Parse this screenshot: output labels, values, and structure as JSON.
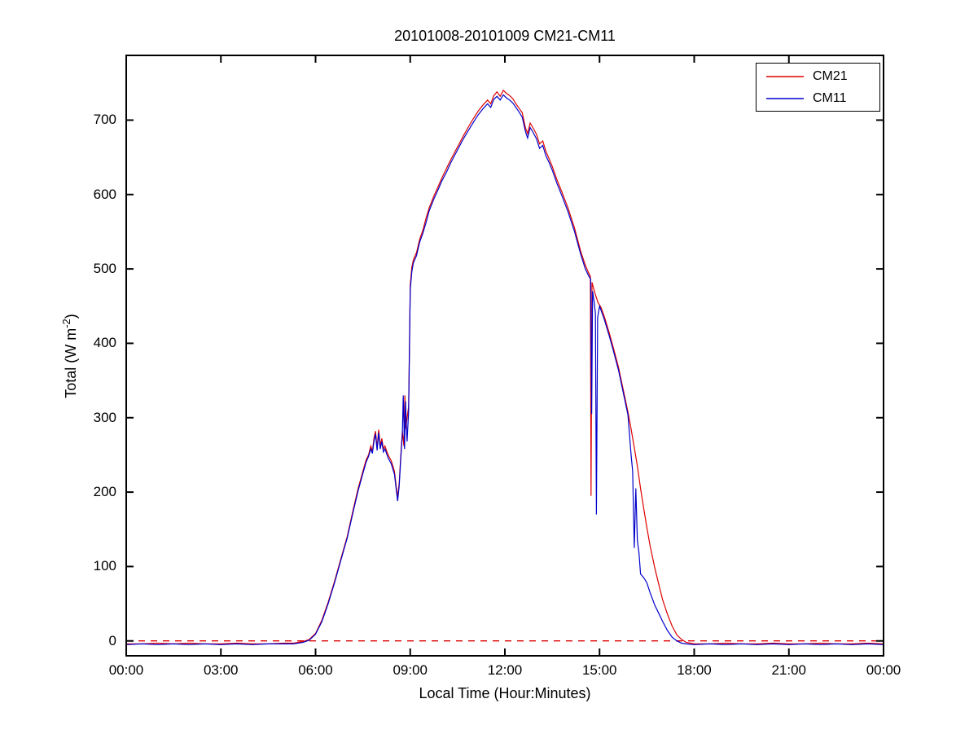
{
  "chart_data": {
    "type": "line",
    "title": "20101008-20101009 CM21-CM11",
    "xlabel": "Local Time (Hour:Minutes)",
    "ylabel": "Total (W m-2)",
    "ylabel_parts": {
      "prefix": "Total (W m",
      "sup": "-2",
      "suffix": ")"
    },
    "xlim": [
      0,
      24
    ],
    "ylim": [
      -20,
      787
    ],
    "grid": false,
    "x_tick_values": [
      0,
      3,
      6,
      9,
      12,
      15,
      18,
      21,
      24
    ],
    "x_tick_labels": [
      "00:00",
      "03:00",
      "06:00",
      "09:00",
      "12:00",
      "15:00",
      "18:00",
      "21:00",
      "00:00"
    ],
    "y_tick_values": [
      0,
      100,
      200,
      300,
      400,
      500,
      600,
      700
    ],
    "y_tick_labels": [
      "0",
      "100",
      "200",
      "300",
      "400",
      "500",
      "600",
      "700"
    ],
    "axis_color": "#000000",
    "zero_line": {
      "y": 0,
      "color": "#dd0000",
      "style": "dashed"
    },
    "legend": {
      "position": "top-right",
      "entries": [
        {
          "name": "CM21",
          "color": "#dd0000"
        },
        {
          "name": "CM11",
          "color": "#0000cc"
        }
      ]
    },
    "series": [
      {
        "name": "CM21",
        "color": "#dd0000",
        "points": [
          [
            0,
            -4
          ],
          [
            0.5,
            -4
          ],
          [
            1,
            -3
          ],
          [
            1.5,
            -4
          ],
          [
            2,
            -3
          ],
          [
            2.5,
            -4
          ],
          [
            3,
            -4
          ],
          [
            3.5,
            -3
          ],
          [
            4,
            -4
          ],
          [
            4.5,
            -4
          ],
          [
            5,
            -3
          ],
          [
            5.3,
            -3
          ],
          [
            5.6,
            -1
          ],
          [
            5.8,
            2
          ],
          [
            6,
            10
          ],
          [
            6.2,
            28
          ],
          [
            6.4,
            52
          ],
          [
            6.6,
            80
          ],
          [
            6.8,
            110
          ],
          [
            7,
            140
          ],
          [
            7.2,
            178
          ],
          [
            7.35,
            205
          ],
          [
            7.5,
            228
          ],
          [
            7.6,
            243
          ],
          [
            7.68,
            250
          ],
          [
            7.75,
            262
          ],
          [
            7.8,
            255
          ],
          [
            7.85,
            272
          ],
          [
            7.9,
            282
          ],
          [
            7.95,
            260
          ],
          [
            8,
            284
          ],
          [
            8.05,
            263
          ],
          [
            8.1,
            272
          ],
          [
            8.15,
            258
          ],
          [
            8.2,
            262
          ],
          [
            8.3,
            250
          ],
          [
            8.4,
            242
          ],
          [
            8.5,
            228
          ],
          [
            8.55,
            210
          ],
          [
            8.6,
            193
          ],
          [
            8.65,
            212
          ],
          [
            8.7,
            248
          ],
          [
            8.75,
            282
          ],
          [
            8.8,
            262
          ],
          [
            8.83,
            330
          ],
          [
            8.86,
            285
          ],
          [
            8.9,
            300
          ],
          [
            8.95,
            315
          ],
          [
            9,
            478
          ],
          [
            9.05,
            502
          ],
          [
            9.1,
            512
          ],
          [
            9.2,
            522
          ],
          [
            9.3,
            540
          ],
          [
            9.4,
            552
          ],
          [
            9.5,
            568
          ],
          [
            9.6,
            582
          ],
          [
            9.75,
            598
          ],
          [
            9.9,
            612
          ],
          [
            10,
            622
          ],
          [
            10.15,
            635
          ],
          [
            10.3,
            648
          ],
          [
            10.5,
            664
          ],
          [
            10.7,
            680
          ],
          [
            10.9,
            695
          ],
          [
            11,
            702
          ],
          [
            11.15,
            712
          ],
          [
            11.3,
            720
          ],
          [
            11.45,
            727
          ],
          [
            11.55,
            722
          ],
          [
            11.65,
            733
          ],
          [
            11.75,
            738
          ],
          [
            11.85,
            732
          ],
          [
            11.95,
            740
          ],
          [
            12.05,
            736
          ],
          [
            12.15,
            733
          ],
          [
            12.25,
            729
          ],
          [
            12.35,
            722
          ],
          [
            12.45,
            716
          ],
          [
            12.55,
            710
          ],
          [
            12.65,
            690
          ],
          [
            12.72,
            682
          ],
          [
            12.8,
            696
          ],
          [
            12.9,
            689
          ],
          [
            13,
            681
          ],
          [
            13.1,
            668
          ],
          [
            13.2,
            672
          ],
          [
            13.3,
            658
          ],
          [
            13.4,
            648
          ],
          [
            13.5,
            638
          ],
          [
            13.65,
            620
          ],
          [
            13.8,
            604
          ],
          [
            14,
            582
          ],
          [
            14.2,
            556
          ],
          [
            14.4,
            524
          ],
          [
            14.55,
            505
          ],
          [
            14.65,
            495
          ],
          [
            14.71,
            490
          ],
          [
            14.73,
            195
          ],
          [
            14.76,
            482
          ],
          [
            14.85,
            468
          ],
          [
            14.95,
            455
          ],
          [
            15.05,
            448
          ],
          [
            15.15,
            436
          ],
          [
            15.3,
            415
          ],
          [
            15.45,
            392
          ],
          [
            15.6,
            368
          ],
          [
            15.75,
            338
          ],
          [
            15.9,
            308
          ],
          [
            16,
            285
          ],
          [
            16.1,
            260
          ],
          [
            16.2,
            235
          ],
          [
            16.3,
            205
          ],
          [
            16.4,
            178
          ],
          [
            16.5,
            152
          ],
          [
            16.6,
            128
          ],
          [
            16.75,
            98
          ],
          [
            16.9,
            72
          ],
          [
            17,
            55
          ],
          [
            17.15,
            36
          ],
          [
            17.3,
            20
          ],
          [
            17.45,
            8
          ],
          [
            17.6,
            2
          ],
          [
            17.75,
            -2
          ],
          [
            18,
            -4
          ],
          [
            18.5,
            -4
          ],
          [
            19,
            -3
          ],
          [
            19.5,
            -4
          ],
          [
            20,
            -4
          ],
          [
            20.5,
            -3
          ],
          [
            21,
            -4
          ],
          [
            21.5,
            -4
          ],
          [
            22,
            -3
          ],
          [
            22.5,
            -4
          ],
          [
            23,
            -4
          ],
          [
            23.5,
            -3
          ],
          [
            24,
            -4
          ]
        ]
      },
      {
        "name": "CM11",
        "color": "#0000cc",
        "points": [
          [
            0,
            -5
          ],
          [
            0.5,
            -4
          ],
          [
            1,
            -5
          ],
          [
            1.5,
            -4
          ],
          [
            2,
            -5
          ],
          [
            2.5,
            -4
          ],
          [
            3,
            -5
          ],
          [
            3.5,
            -4
          ],
          [
            4,
            -5
          ],
          [
            4.5,
            -4
          ],
          [
            5,
            -4
          ],
          [
            5.3,
            -4
          ],
          [
            5.6,
            -2
          ],
          [
            5.8,
            1
          ],
          [
            6,
            9
          ],
          [
            6.2,
            26
          ],
          [
            6.4,
            50
          ],
          [
            6.6,
            78
          ],
          [
            6.8,
            108
          ],
          [
            7,
            138
          ],
          [
            7.2,
            175
          ],
          [
            7.35,
            202
          ],
          [
            7.5,
            225
          ],
          [
            7.6,
            240
          ],
          [
            7.68,
            248
          ],
          [
            7.75,
            258
          ],
          [
            7.8,
            252
          ],
          [
            7.85,
            268
          ],
          [
            7.9,
            278
          ],
          [
            7.95,
            256
          ],
          [
            8,
            280
          ],
          [
            8.05,
            258
          ],
          [
            8.1,
            268
          ],
          [
            8.15,
            254
          ],
          [
            8.2,
            258
          ],
          [
            8.3,
            246
          ],
          [
            8.4,
            238
          ],
          [
            8.5,
            224
          ],
          [
            8.55,
            206
          ],
          [
            8.6,
            188
          ],
          [
            8.65,
            208
          ],
          [
            8.7,
            244
          ],
          [
            8.75,
            278
          ],
          [
            8.78,
            330
          ],
          [
            8.82,
            258
          ],
          [
            8.85,
            322
          ],
          [
            8.9,
            268
          ],
          [
            8.95,
            308
          ],
          [
            9,
            472
          ],
          [
            9.05,
            496
          ],
          [
            9.1,
            508
          ],
          [
            9.2,
            518
          ],
          [
            9.3,
            536
          ],
          [
            9.4,
            548
          ],
          [
            9.5,
            562
          ],
          [
            9.6,
            578
          ],
          [
            9.75,
            594
          ],
          [
            9.9,
            608
          ],
          [
            10,
            618
          ],
          [
            10.15,
            630
          ],
          [
            10.3,
            644
          ],
          [
            10.5,
            660
          ],
          [
            10.7,
            676
          ],
          [
            10.9,
            690
          ],
          [
            11,
            697
          ],
          [
            11.15,
            707
          ],
          [
            11.3,
            715
          ],
          [
            11.45,
            722
          ],
          [
            11.55,
            717
          ],
          [
            11.65,
            728
          ],
          [
            11.75,
            732
          ],
          [
            11.85,
            727
          ],
          [
            11.95,
            734
          ],
          [
            12.05,
            730
          ],
          [
            12.15,
            727
          ],
          [
            12.25,
            723
          ],
          [
            12.35,
            717
          ],
          [
            12.45,
            711
          ],
          [
            12.55,
            704
          ],
          [
            12.65,
            685
          ],
          [
            12.72,
            676
          ],
          [
            12.8,
            690
          ],
          [
            12.9,
            683
          ],
          [
            13,
            675
          ],
          [
            13.1,
            662
          ],
          [
            13.2,
            666
          ],
          [
            13.3,
            652
          ],
          [
            13.4,
            643
          ],
          [
            13.5,
            633
          ],
          [
            13.65,
            615
          ],
          [
            13.8,
            599
          ],
          [
            14,
            577
          ],
          [
            14.2,
            551
          ],
          [
            14.4,
            520
          ],
          [
            14.55,
            500
          ],
          [
            14.65,
            491
          ],
          [
            14.72,
            486
          ],
          [
            14.75,
            305
          ],
          [
            14.78,
            470
          ],
          [
            14.83,
            455
          ],
          [
            14.87,
            440
          ],
          [
            14.9,
            170
          ],
          [
            14.94,
            435
          ],
          [
            15,
            450
          ],
          [
            15.05,
            444
          ],
          [
            15.15,
            432
          ],
          [
            15.3,
            411
          ],
          [
            15.45,
            388
          ],
          [
            15.6,
            364
          ],
          [
            15.75,
            334
          ],
          [
            15.9,
            304
          ],
          [
            16,
            250
          ],
          [
            16.05,
            228
          ],
          [
            16.1,
            125
          ],
          [
            16.15,
            205
          ],
          [
            16.2,
            135
          ],
          [
            16.25,
            118
          ],
          [
            16.3,
            90
          ],
          [
            16.4,
            85
          ],
          [
            16.5,
            78
          ],
          [
            16.6,
            65
          ],
          [
            16.75,
            48
          ],
          [
            16.9,
            35
          ],
          [
            17,
            26
          ],
          [
            17.15,
            14
          ],
          [
            17.3,
            5
          ],
          [
            17.45,
            0
          ],
          [
            17.6,
            -3
          ],
          [
            17.75,
            -4
          ],
          [
            18,
            -5
          ],
          [
            18.5,
            -4
          ],
          [
            19,
            -5
          ],
          [
            19.5,
            -4
          ],
          [
            20,
            -5
          ],
          [
            20.5,
            -4
          ],
          [
            21,
            -5
          ],
          [
            21.5,
            -4
          ],
          [
            22,
            -5
          ],
          [
            22.5,
            -4
          ],
          [
            23,
            -5
          ],
          [
            23.5,
            -4
          ],
          [
            24,
            -5
          ]
        ]
      }
    ]
  }
}
